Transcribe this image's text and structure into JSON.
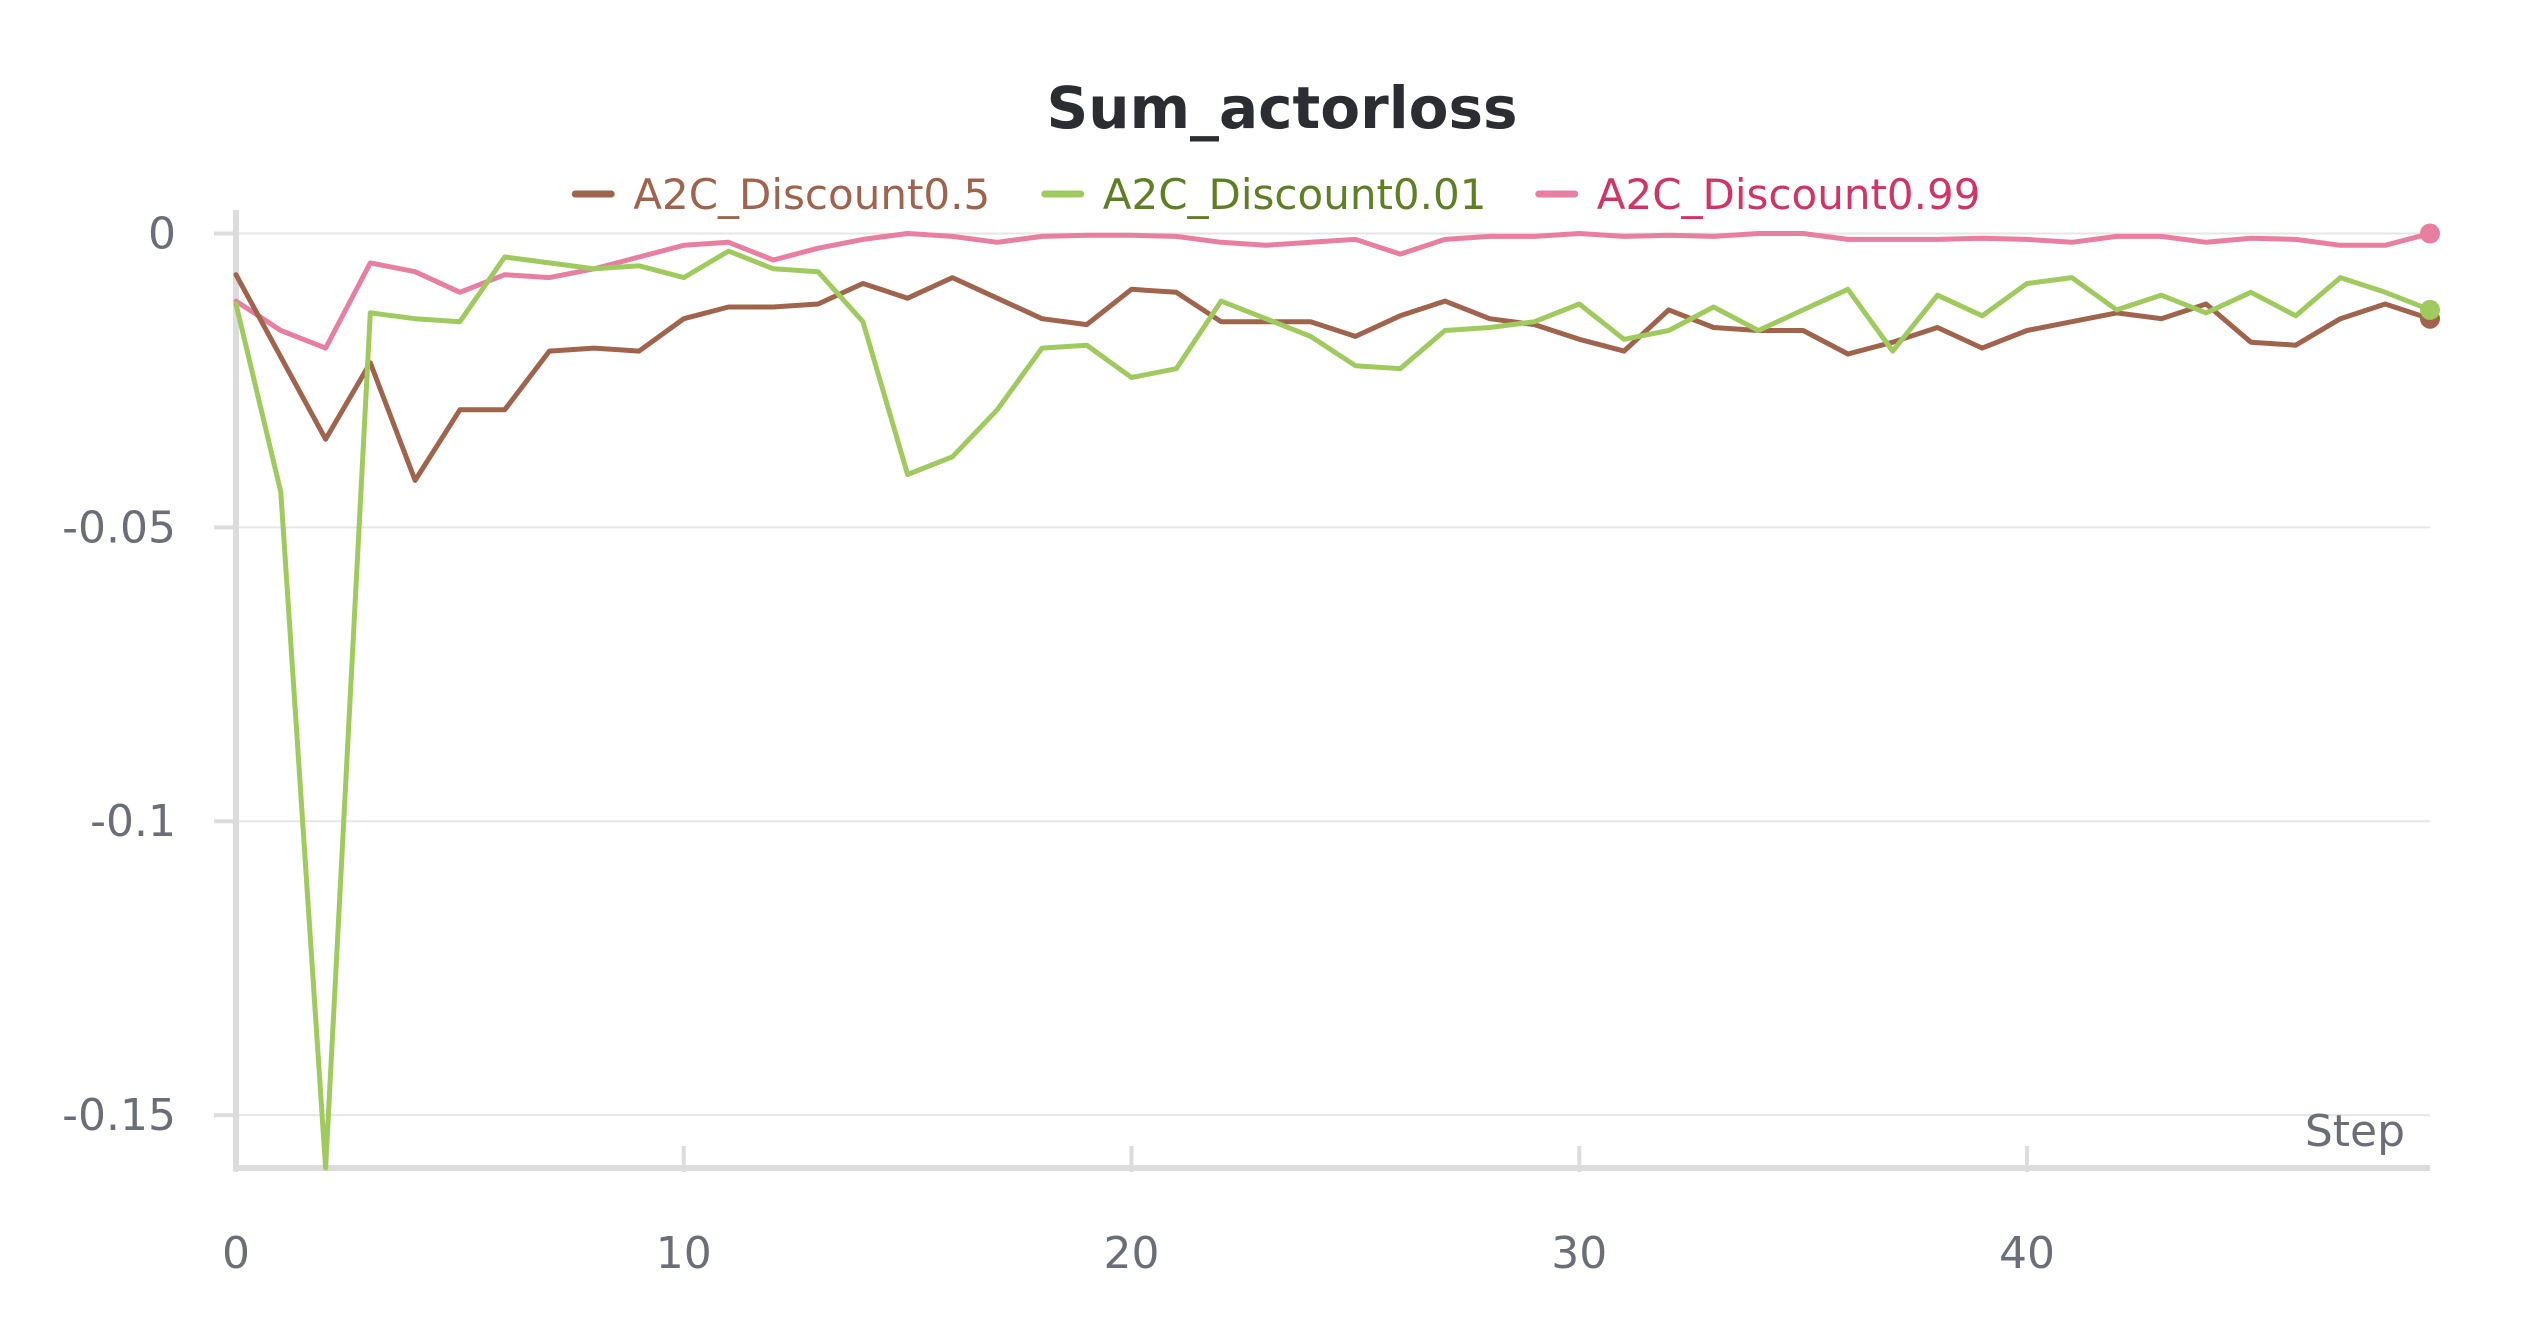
{
  "chart_data": {
    "type": "line",
    "title": "Sum_actorloss",
    "xlabel": "Step",
    "ylabel": "",
    "xlim": [
      0,
      49
    ],
    "ylim": [
      -0.159,
      0.004
    ],
    "x_ticks": [
      0,
      10,
      20,
      30,
      40
    ],
    "y_ticks": [
      0,
      -0.05,
      -0.1,
      -0.15
    ],
    "x_tick_labels": [
      "0",
      "10",
      "20",
      "30",
      "40"
    ],
    "y_tick_labels": [
      "0",
      "-0.05",
      "-0.1",
      "-0.15"
    ],
    "grid": true,
    "legend_position": "top-center",
    "series": [
      {
        "name": "A2C_Discount0.5",
        "color": "#a0634c",
        "text_color": "#a0634c",
        "x": [
          0,
          1,
          2,
          3,
          4,
          5,
          6,
          7,
          8,
          9,
          10,
          11,
          12,
          13,
          14,
          15,
          16,
          17,
          18,
          19,
          20,
          21,
          22,
          23,
          24,
          25,
          26,
          27,
          28,
          29,
          30,
          31,
          32,
          33,
          34,
          35,
          36,
          37,
          38,
          39,
          40,
          41,
          42,
          43,
          44,
          45,
          46,
          47,
          48,
          49
        ],
        "values": [
          -0.007,
          -0.021,
          -0.035,
          -0.022,
          -0.042,
          -0.03,
          -0.03,
          -0.02,
          -0.0195,
          -0.02,
          -0.0145,
          -0.0125,
          -0.0125,
          -0.012,
          -0.0085,
          -0.011,
          -0.0075,
          -0.011,
          -0.0145,
          -0.0155,
          -0.0095,
          -0.01,
          -0.015,
          -0.015,
          -0.015,
          -0.0175,
          -0.014,
          -0.0115,
          -0.0145,
          -0.0155,
          -0.018,
          -0.02,
          -0.013,
          -0.016,
          -0.0165,
          -0.0165,
          -0.0205,
          -0.0185,
          -0.016,
          -0.0195,
          -0.0165,
          -0.015,
          -0.0135,
          -0.0145,
          -0.012,
          -0.0185,
          -0.019,
          -0.0145,
          -0.012,
          -0.0145
        ]
      },
      {
        "name": "A2C_Discount0.01",
        "color": "#9fcb5e",
        "text_color": "#5e7f24",
        "x": [
          0,
          1,
          2,
          3,
          4,
          5,
          6,
          7,
          8,
          9,
          10,
          11,
          12,
          13,
          14,
          15,
          16,
          17,
          18,
          19,
          20,
          21,
          22,
          23,
          24,
          25,
          26,
          27,
          28,
          29,
          30,
          31,
          32,
          33,
          34,
          35,
          36,
          37,
          38,
          39,
          40,
          41,
          42,
          43,
          44,
          45,
          46,
          47,
          48,
          49
        ],
        "values": [
          -0.012,
          -0.044,
          -0.159,
          -0.0135,
          -0.0145,
          -0.015,
          -0.004,
          -0.005,
          -0.006,
          -0.0055,
          -0.0075,
          -0.003,
          -0.006,
          -0.0065,
          -0.015,
          -0.041,
          -0.038,
          -0.03,
          -0.0195,
          -0.019,
          -0.0245,
          -0.023,
          -0.0115,
          -0.0145,
          -0.0175,
          -0.0225,
          -0.023,
          -0.0165,
          -0.016,
          -0.015,
          -0.012,
          -0.018,
          -0.0165,
          -0.0125,
          -0.0165,
          -0.013,
          -0.0095,
          -0.02,
          -0.0105,
          -0.014,
          -0.0085,
          -0.0075,
          -0.013,
          -0.0105,
          -0.0135,
          -0.01,
          -0.014,
          -0.0075,
          -0.01,
          -0.013
        ]
      },
      {
        "name": "A2C_Discount0.99",
        "color": "#e87ea0",
        "text_color": "#d23465",
        "x": [
          0,
          1,
          2,
          3,
          4,
          5,
          6,
          7,
          8,
          9,
          10,
          11,
          12,
          13,
          14,
          15,
          16,
          17,
          18,
          19,
          20,
          21,
          22,
          23,
          24,
          25,
          26,
          27,
          28,
          29,
          30,
          31,
          32,
          33,
          34,
          35,
          36,
          37,
          38,
          39,
          40,
          41,
          42,
          43,
          44,
          45,
          46,
          47,
          48,
          49
        ],
        "values": [
          -0.0115,
          -0.0165,
          -0.0195,
          -0.005,
          -0.0065,
          -0.01,
          -0.007,
          -0.0075,
          -0.006,
          -0.004,
          -0.002,
          -0.0015,
          -0.0045,
          -0.0025,
          -0.001,
          0.0,
          -0.0005,
          -0.0015,
          -0.0005,
          -0.0003,
          -0.0003,
          -0.0005,
          -0.0015,
          -0.002,
          -0.0015,
          -0.001,
          -0.0035,
          -0.001,
          -0.0005,
          -0.0005,
          0.0,
          -0.0005,
          -0.0003,
          -0.0005,
          0.0,
          0.0,
          -0.001,
          -0.001,
          -0.001,
          -0.0008,
          -0.001,
          -0.0015,
          -0.0005,
          -0.0005,
          -0.0015,
          -0.0008,
          -0.001,
          -0.002,
          -0.002,
          0.0
        ]
      }
    ]
  }
}
